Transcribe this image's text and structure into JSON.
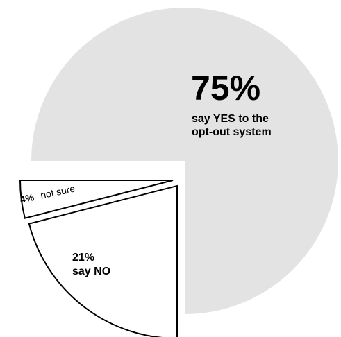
{
  "chart_data": {
    "type": "pie",
    "style": "exploded",
    "slices": [
      {
        "pct_label": "75%",
        "text": [
          "say YES to the",
          "opt-out system"
        ],
        "value": 75,
        "color": "#e3e3e3",
        "outline": "none"
      },
      {
        "pct_label": "21%",
        "text": [
          "say NO"
        ],
        "value": 21,
        "color": "#ffffff",
        "outline": "#000000"
      },
      {
        "pct_label": "4%",
        "text": [
          "not sure"
        ],
        "value": 4,
        "color": "#ffffff",
        "outline": "#000000"
      }
    ]
  }
}
